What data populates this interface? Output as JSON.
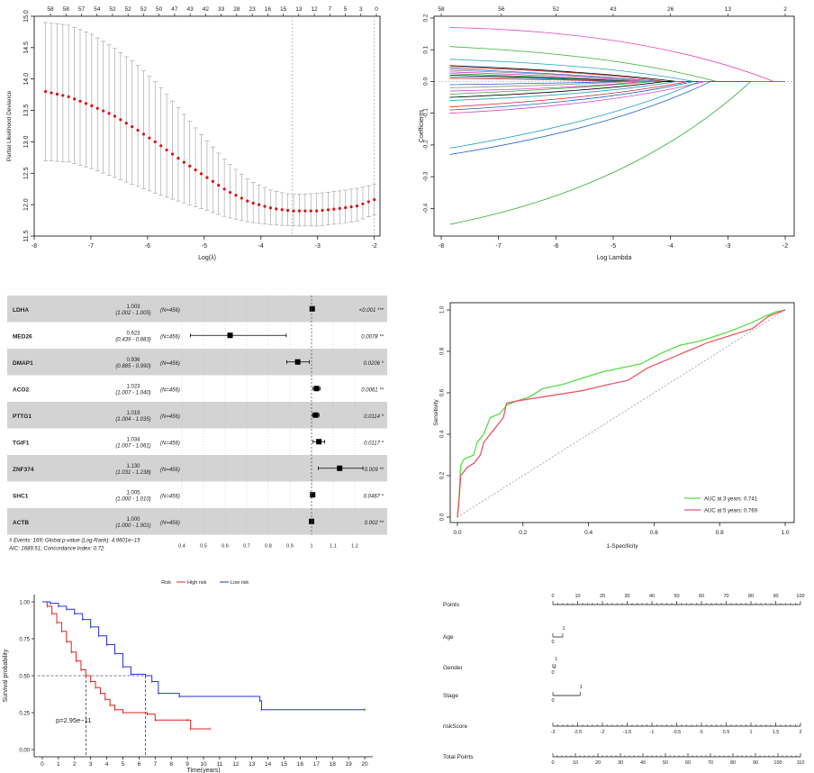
{
  "chart_data": [
    {
      "type": "line",
      "panel": "cv-deviance",
      "xlabel": "Log(λ)",
      "ylabel": "Partial Likelihood Deviance",
      "x_ticks": [
        "-8",
        "-7",
        "-6",
        "-5",
        "-4",
        "-3",
        "-2"
      ],
      "y_ticks": [
        "11.5",
        "12.0",
        "12.5",
        "13.0",
        "13.5",
        "14.0",
        "14.5",
        "15.0"
      ],
      "top_ticks": [
        "58",
        "58",
        "57",
        "54",
        "52",
        "52",
        "52",
        "50",
        "47",
        "43",
        "42",
        "33",
        "28",
        "23",
        "16",
        "15",
        "13",
        "12",
        "7",
        "5",
        "3",
        "0"
      ],
      "xlim": [
        -8,
        -1.9
      ],
      "ylim": [
        11.5,
        15.0
      ],
      "lambda_min": -3.45,
      "lambda_1se": -2.0,
      "curve": [
        [
          -7.8,
          13.8
        ],
        [
          -7.4,
          13.72
        ],
        [
          -7.0,
          13.58
        ],
        [
          -6.6,
          13.42
        ],
        [
          -6.2,
          13.2
        ],
        [
          -5.8,
          12.96
        ],
        [
          -5.4,
          12.7
        ],
        [
          -5.0,
          12.46
        ],
        [
          -4.6,
          12.22
        ],
        [
          -4.2,
          12.04
        ],
        [
          -3.8,
          11.94
        ],
        [
          -3.45,
          11.9
        ],
        [
          -3.0,
          11.9
        ],
        [
          -2.6,
          11.94
        ],
        [
          -2.3,
          11.98
        ],
        [
          -2.0,
          12.08
        ]
      ],
      "upper": [
        [
          -7.8,
          14.9
        ],
        [
          -7.4,
          14.86
        ],
        [
          -7.0,
          14.72
        ],
        [
          -6.6,
          14.5
        ],
        [
          -6.2,
          14.24
        ],
        [
          -5.8,
          13.9
        ],
        [
          -5.4,
          13.48
        ],
        [
          -5.0,
          13.06
        ],
        [
          -4.6,
          12.68
        ],
        [
          -4.2,
          12.38
        ],
        [
          -3.8,
          12.22
        ],
        [
          -3.45,
          12.16
        ],
        [
          -3.0,
          12.18
        ],
        [
          -2.6,
          12.22
        ],
        [
          -2.3,
          12.26
        ],
        [
          -2.0,
          12.32
        ]
      ],
      "lower": [
        [
          -7.8,
          12.7
        ],
        [
          -7.4,
          12.68
        ],
        [
          -7.0,
          12.58
        ],
        [
          -6.6,
          12.44
        ],
        [
          -6.2,
          12.3
        ],
        [
          -5.8,
          12.16
        ],
        [
          -5.4,
          12.04
        ],
        [
          -5.0,
          11.92
        ],
        [
          -4.6,
          11.8
        ],
        [
          -4.2,
          11.72
        ],
        [
          -3.8,
          11.68
        ],
        [
          -3.45,
          11.66
        ],
        [
          -3.0,
          11.66
        ],
        [
          -2.6,
          11.7
        ],
        [
          -2.3,
          11.74
        ],
        [
          -2.0,
          11.84
        ]
      ]
    },
    {
      "type": "line",
      "panel": "lasso-paths",
      "xlabel": "Log Lambda",
      "ylabel": "Coefficients",
      "x_ticks": [
        "-8",
        "-7",
        "-6",
        "-5",
        "-4",
        "-3",
        "-2"
      ],
      "y_ticks": [
        "-0.4",
        "-0.3",
        "-0.2",
        "-0.1",
        "0.0",
        "0.1",
        "0.2"
      ],
      "top_ticks": [
        "58",
        "56",
        "52",
        "43",
        "26",
        "13",
        "2"
      ],
      "xlim": [
        -8,
        -2
      ],
      "ylim": [
        -0.47,
        0.2
      ],
      "paths": [
        {
          "start": 0.17,
          "end": -2.2,
          "mid": 0.15,
          "color": "#e040c0"
        },
        {
          "start": 0.11,
          "end": -3.2,
          "mid": 0.08,
          "color": "#30b030"
        },
        {
          "start": 0.07,
          "end": -3.6,
          "mid": 0.05,
          "color": "#20a0c0"
        },
        {
          "start": 0.05,
          "end": -3.9,
          "mid": 0.03,
          "color": "#000000"
        },
        {
          "start": 0.045,
          "end": -4.1,
          "mid": 0.03,
          "color": "#d02020"
        },
        {
          "start": 0.04,
          "end": -4.2,
          "mid": 0.02,
          "color": "#2060d0"
        },
        {
          "start": 0.035,
          "end": -4.4,
          "mid": 0.02,
          "color": "#909090"
        },
        {
          "start": 0.03,
          "end": -4.5,
          "mid": 0.015,
          "color": "#e040c0"
        },
        {
          "start": 0.025,
          "end": -4.6,
          "mid": 0.01,
          "color": "#30b030"
        },
        {
          "start": 0.02,
          "end": -4.7,
          "mid": 0.01,
          "color": "#000000"
        },
        {
          "start": 0.015,
          "end": -4.8,
          "mid": 0.008,
          "color": "#20a0c0"
        },
        {
          "start": 0.01,
          "end": -4.9,
          "mid": 0.005,
          "color": "#d02020"
        },
        {
          "start": -0.01,
          "end": -4.9,
          "mid": -0.005,
          "color": "#2060d0"
        },
        {
          "start": -0.02,
          "end": -4.7,
          "mid": -0.01,
          "color": "#909090"
        },
        {
          "start": -0.03,
          "end": -4.5,
          "mid": -0.02,
          "color": "#e040c0"
        },
        {
          "start": -0.04,
          "end": -4.3,
          "mid": -0.02,
          "color": "#30b030"
        },
        {
          "start": -0.05,
          "end": -4.1,
          "mid": -0.03,
          "color": "#000000"
        },
        {
          "start": -0.06,
          "end": -3.9,
          "mid": -0.04,
          "color": "#20a0c0"
        },
        {
          "start": -0.08,
          "end": -3.7,
          "mid": -0.05,
          "color": "#d02020"
        },
        {
          "start": -0.09,
          "end": -3.6,
          "mid": -0.06,
          "color": "#2060d0"
        },
        {
          "start": -0.1,
          "end": -3.4,
          "mid": -0.07,
          "color": "#e040c0"
        },
        {
          "start": -0.21,
          "end": -3.5,
          "mid": -0.12,
          "color": "#20a0c0"
        },
        {
          "start": -0.23,
          "end": -3.3,
          "mid": -0.14,
          "color": "#2060d0"
        },
        {
          "start": -0.45,
          "end": -2.6,
          "mid": -0.32,
          "color": "#30b030"
        }
      ]
    },
    {
      "type": "forest",
      "panel": "multivariate-cox",
      "rows": [
        {
          "gene": "LDHA",
          "hr": "1.003",
          "ci": "(1.002 - 1.005)",
          "n": "(N=456)",
          "p": "<0.001 ***",
          "est": 1.003,
          "lo": 1.002,
          "hi": 1.005
        },
        {
          "gene": "MED26",
          "hr": "0.623",
          "ci": "(0.439 - 0.883)",
          "n": "(N=456)",
          "p": "0.0078 **",
          "est": 0.623,
          "lo": 0.439,
          "hi": 0.883
        },
        {
          "gene": "DMAP1",
          "hr": "0.936",
          "ci": "(0.885 - 0.990)",
          "n": "(N=456)",
          "p": "0.0206 *",
          "est": 0.936,
          "lo": 0.885,
          "hi": 0.99
        },
        {
          "gene": "ACO2",
          "hr": "1.023",
          "ci": "(1.007 - 1.040)",
          "n": "(N=456)",
          "p": "0.0061 **",
          "est": 1.023,
          "lo": 1.007,
          "hi": 1.04
        },
        {
          "gene": "PTTG1",
          "hr": "1.019",
          "ci": "(1.004 - 1.035)",
          "n": "(N=456)",
          "p": "0.0114 *",
          "est": 1.019,
          "lo": 1.004,
          "hi": 1.035
        },
        {
          "gene": "TGIF1",
          "hr": "1.034",
          "ci": "(1.007 - 1.061)",
          "n": "(N=456)",
          "p": "0.0117 *",
          "est": 1.034,
          "lo": 1.007,
          "hi": 1.061
        },
        {
          "gene": "ZNF374",
          "hr": "1.130",
          "ci": "(1.031 - 1.238)",
          "n": "(N=456)",
          "p": "0.009 **",
          "est": 1.13,
          "lo": 1.031,
          "hi": 1.238
        },
        {
          "gene": "SHC1",
          "hr": "1.005",
          "ci": "(1.000 - 1.010)",
          "n": "(N=456)",
          "p": "0.0467 *",
          "est": 1.005,
          "lo": 1.0,
          "hi": 1.01
        },
        {
          "gene": "ACTB",
          "hr": "1.000",
          "ci": "(1.000 - 1.001)",
          "n": "(N=456)",
          "p": "0.002 **",
          "est": 1.0,
          "lo": 1.0,
          "hi": 1.001
        }
      ],
      "x_ticks": [
        "0.4",
        "0.5",
        "0.6",
        "0.7",
        "0.8",
        "0.9",
        "1",
        "1.1",
        "1.2"
      ],
      "x_tick_values": [
        0.4,
        0.5,
        0.6,
        0.7,
        0.8,
        0.9,
        1.0,
        1.1,
        1.2
      ],
      "footer_line1": "# Events: 169; Global p-value (Log-Rank): 4.9601e−15",
      "footer_line2": "AIC: 1689.51; Concordance Index: 0.72"
    },
    {
      "type": "line",
      "panel": "roc",
      "xlabel": "1-Specificity",
      "ylabel": "Sensitivity",
      "x_ticks": [
        "0.0",
        "0.2",
        "0.4",
        "0.6",
        "0.8",
        "1.0"
      ],
      "y_ticks": [
        "0.0",
        "0.2",
        "0.4",
        "0.6",
        "0.8",
        "1.0"
      ],
      "xlim": [
        0,
        1
      ],
      "ylim": [
        0,
        1
      ],
      "series": [
        {
          "name": "AUC at 3 years: 0.741",
          "color": "#55dd44",
          "points": [
            [
              0,
              0
            ],
            [
              0.005,
              0.1
            ],
            [
              0.01,
              0.25
            ],
            [
              0.02,
              0.28
            ],
            [
              0.05,
              0.3
            ],
            [
              0.06,
              0.36
            ],
            [
              0.08,
              0.4
            ],
            [
              0.1,
              0.48
            ],
            [
              0.13,
              0.5
            ],
            [
              0.15,
              0.54
            ],
            [
              0.18,
              0.56
            ],
            [
              0.22,
              0.58
            ],
            [
              0.26,
              0.62
            ],
            [
              0.32,
              0.64
            ],
            [
              0.38,
              0.67
            ],
            [
              0.44,
              0.7
            ],
            [
              0.5,
              0.72
            ],
            [
              0.56,
              0.74
            ],
            [
              0.62,
              0.79
            ],
            [
              0.68,
              0.83
            ],
            [
              0.74,
              0.85
            ],
            [
              0.82,
              0.89
            ],
            [
              0.9,
              0.94
            ],
            [
              0.94,
              0.97
            ],
            [
              0.97,
              0.99
            ],
            [
              1,
              1
            ]
          ]
        },
        {
          "name": "AUC at 5 years: 0.769",
          "color": "#ee5566",
          "points": [
            [
              0,
              0
            ],
            [
              0.005,
              0.08
            ],
            [
              0.01,
              0.2
            ],
            [
              0.03,
              0.24
            ],
            [
              0.05,
              0.26
            ],
            [
              0.07,
              0.3
            ],
            [
              0.08,
              0.36
            ],
            [
              0.1,
              0.4
            ],
            [
              0.12,
              0.44
            ],
            [
              0.14,
              0.48
            ],
            [
              0.15,
              0.55
            ],
            [
              0.18,
              0.56
            ],
            [
              0.22,
              0.57
            ],
            [
              0.3,
              0.59
            ],
            [
              0.38,
              0.61
            ],
            [
              0.46,
              0.64
            ],
            [
              0.52,
              0.66
            ],
            [
              0.58,
              0.72
            ],
            [
              0.64,
              0.76
            ],
            [
              0.7,
              0.8
            ],
            [
              0.76,
              0.84
            ],
            [
              0.84,
              0.88
            ],
            [
              0.9,
              0.91
            ],
            [
              0.95,
              0.97
            ],
            [
              1,
              1
            ]
          ]
        }
      ]
    },
    {
      "type": "line",
      "panel": "kaplan-meier",
      "legend_title": "Risk",
      "xlabel": "Time(years)",
      "ylabel": "Survival probability",
      "pvalue": "p=2.95e−11",
      "x_ticks": [
        "0",
        "1",
        "2",
        "3",
        "4",
        "5",
        "6",
        "7",
        "8",
        "9",
        "10",
        "11",
        "12",
        "13",
        "14",
        "15",
        "16",
        "17",
        "18",
        "19",
        "20"
      ],
      "y_ticks": [
        "0.00",
        "0.25",
        "0.50",
        "0.75",
        "1.00"
      ],
      "xlim": [
        -0.5,
        20.5
      ],
      "ylim": [
        0,
        1
      ],
      "median_high": 2.7,
      "median_low": 6.4,
      "series": [
        {
          "name": "High risk",
          "color": "#e02020",
          "points": [
            [
              0,
              1
            ],
            [
              0.3,
              0.97
            ],
            [
              0.6,
              0.92
            ],
            [
              0.9,
              0.86
            ],
            [
              1.2,
              0.8
            ],
            [
              1.5,
              0.73
            ],
            [
              1.8,
              0.66
            ],
            [
              2.1,
              0.6
            ],
            [
              2.4,
              0.54
            ],
            [
              2.7,
              0.5
            ],
            [
              3.0,
              0.46
            ],
            [
              3.3,
              0.42
            ],
            [
              3.6,
              0.38
            ],
            [
              3.9,
              0.34
            ],
            [
              4.2,
              0.3
            ],
            [
              4.5,
              0.27
            ],
            [
              5.0,
              0.25
            ],
            [
              6.5,
              0.24
            ],
            [
              7.0,
              0.2
            ],
            [
              9.0,
              0.2
            ],
            [
              9.2,
              0.14
            ],
            [
              10.4,
              0.14
            ]
          ]
        },
        {
          "name": "Low risk",
          "color": "#2030e0",
          "points": [
            [
              0,
              1
            ],
            [
              0.5,
              0.99
            ],
            [
              1.0,
              0.97
            ],
            [
              1.5,
              0.95
            ],
            [
              2.0,
              0.92
            ],
            [
              2.5,
              0.88
            ],
            [
              3.0,
              0.83
            ],
            [
              3.5,
              0.77
            ],
            [
              4.0,
              0.71
            ],
            [
              4.5,
              0.65
            ],
            [
              5.0,
              0.56
            ],
            [
              5.5,
              0.51
            ],
            [
              6.4,
              0.5
            ],
            [
              6.8,
              0.46
            ],
            [
              7.2,
              0.38
            ],
            [
              8.5,
              0.36
            ],
            [
              13.5,
              0.33
            ],
            [
              13.6,
              0.27
            ],
            [
              20,
              0.27
            ]
          ]
        }
      ]
    },
    {
      "type": "nomogram",
      "panel": "nomogram",
      "rows": [
        {
          "label": "Points",
          "ticks": [
            "0",
            "10",
            "20",
            "30",
            "40",
            "50",
            "60",
            "70",
            "80",
            "90",
            "100"
          ],
          "from": 0,
          "to": 1
        },
        {
          "label": "Age",
          "ticks": [
            "0",
            "1"
          ],
          "from": 0,
          "to": 0.04
        },
        {
          "label": "Gender",
          "ticks": [
            "0",
            "1"
          ],
          "from": 0,
          "to": 0.01
        },
        {
          "label": "Stage",
          "ticks": [
            "0",
            "1"
          ],
          "from": 0,
          "to": 0.11
        },
        {
          "label": "riskScore",
          "ticks": [
            "-3",
            "-2.5",
            "-2",
            "-1.5",
            "-1",
            "-0.5",
            "0",
            "0.5",
            "1",
            "1.5",
            "2"
          ],
          "from": 0,
          "to": 1
        },
        {
          "label": "Total Points",
          "ticks": [
            "0",
            "10",
            "20",
            "30",
            "40",
            "50",
            "60",
            "70",
            "80",
            "90",
            "100",
            "110"
          ],
          "from": 0,
          "to": 1
        }
      ]
    }
  ]
}
